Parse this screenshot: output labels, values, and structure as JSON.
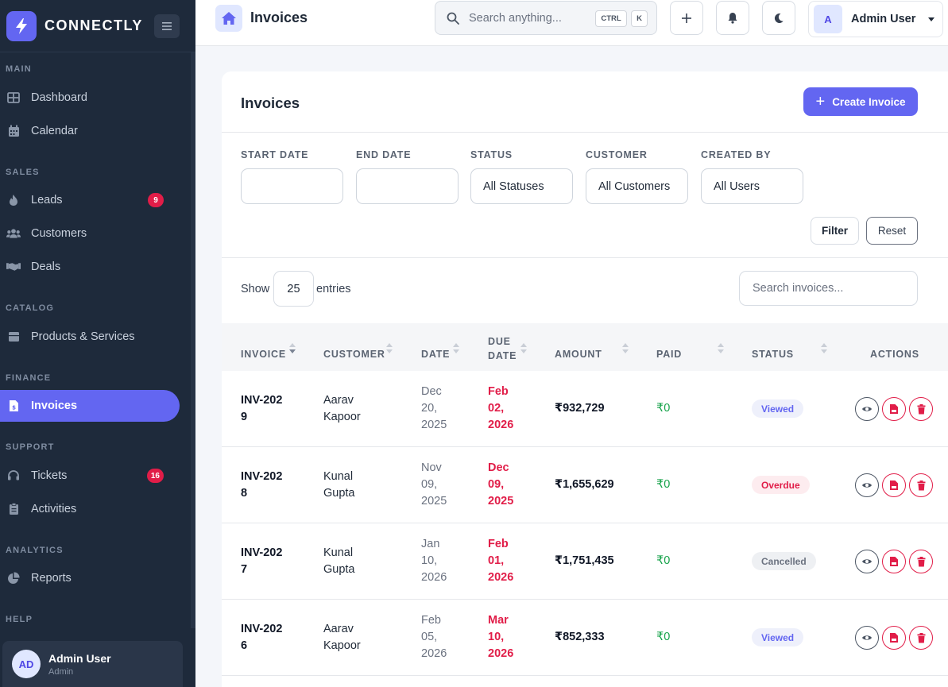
{
  "app": {
    "brand": "CONNECTLY"
  },
  "sidebar": {
    "sections": [
      {
        "label": "MAIN"
      },
      {
        "label": "SALES"
      },
      {
        "label": "CATALOG"
      },
      {
        "label": "FINANCE"
      },
      {
        "label": "SUPPORT"
      },
      {
        "label": "ANALYTICS"
      },
      {
        "label": "HELP"
      }
    ],
    "items": [
      {
        "label": "Dashboard",
        "icon": "grid-icon"
      },
      {
        "label": "Calendar",
        "icon": "calendar-icon"
      },
      {
        "label": "Leads",
        "icon": "fire-icon",
        "badge": "9"
      },
      {
        "label": "Customers",
        "icon": "users-icon"
      },
      {
        "label": "Deals",
        "icon": "handshake-icon"
      },
      {
        "label": "Products & Services",
        "icon": "box-icon"
      },
      {
        "label": "Invoices",
        "icon": "invoice-icon",
        "active": true
      },
      {
        "label": "Tickets",
        "icon": "headset-icon",
        "badge": "16"
      },
      {
        "label": "Activities",
        "icon": "clipboard-icon"
      },
      {
        "label": "Reports",
        "icon": "pie-chart-icon"
      }
    ],
    "user": {
      "initials": "AD",
      "name": "Admin User",
      "role": "Admin"
    }
  },
  "topbar": {
    "title": "Invoices",
    "search_placeholder": "Search anything...",
    "kbd": [
      "CTRL",
      "K"
    ],
    "user": {
      "initial": "A",
      "name": "Admin User"
    }
  },
  "card": {
    "title": "Invoices",
    "create_label": "Create Invoice",
    "filters": {
      "start_date": {
        "label": "START DATE",
        "value": ""
      },
      "end_date": {
        "label": "END DATE",
        "value": ""
      },
      "status": {
        "label": "STATUS",
        "value": "All Statuses"
      },
      "customer": {
        "label": "CUSTOMER",
        "value": "All Customers"
      },
      "created_by": {
        "label": "CREATED BY",
        "value": "All Users"
      },
      "filter_label": "Filter",
      "reset_label": "Reset"
    },
    "length": {
      "show": "Show",
      "value": "25",
      "entries": "entries"
    },
    "table_search_placeholder": "Search invoices..."
  },
  "table": {
    "columns": {
      "invoice": "INVOICE",
      "customer": "CUSTOMER",
      "date": "DATE",
      "due_date": "DUE DATE",
      "amount": "AMOUNT",
      "paid": "PAID",
      "status": "STATUS",
      "actions": "ACTIONS"
    },
    "rows": [
      {
        "invoice": "INV-2029",
        "customer": "Aarav Kapoor",
        "date": "Dec 20, 2025",
        "due": "Feb 02, 2026",
        "amount": "₹932,729",
        "paid": "₹0",
        "status": "Viewed",
        "status_key": "viewed"
      },
      {
        "invoice": "INV-2028",
        "customer": "Kunal Gupta",
        "date": "Nov 09, 2025",
        "due": "Dec 09, 2025",
        "amount": "₹1,655,629",
        "paid": "₹0",
        "status": "Overdue",
        "status_key": "overdue"
      },
      {
        "invoice": "INV-2027",
        "customer": "Kunal Gupta",
        "date": "Jan 10, 2026",
        "due": "Feb 01, 2026",
        "amount": "₹1,751,435",
        "paid": "₹0",
        "status": "Cancelled",
        "status_key": "cancelled"
      },
      {
        "invoice": "INV-2026",
        "customer": "Aarav Kapoor",
        "date": "Feb 05, 2026",
        "due": "Mar 10, 2026",
        "amount": "₹852,333",
        "paid": "₹0",
        "status": "Viewed",
        "status_key": "viewed"
      }
    ]
  },
  "colors": {
    "accent": "#6366f1",
    "sidebar_bg": "#1e2a3b",
    "danger": "#e11d48",
    "success": "#16a34a"
  }
}
